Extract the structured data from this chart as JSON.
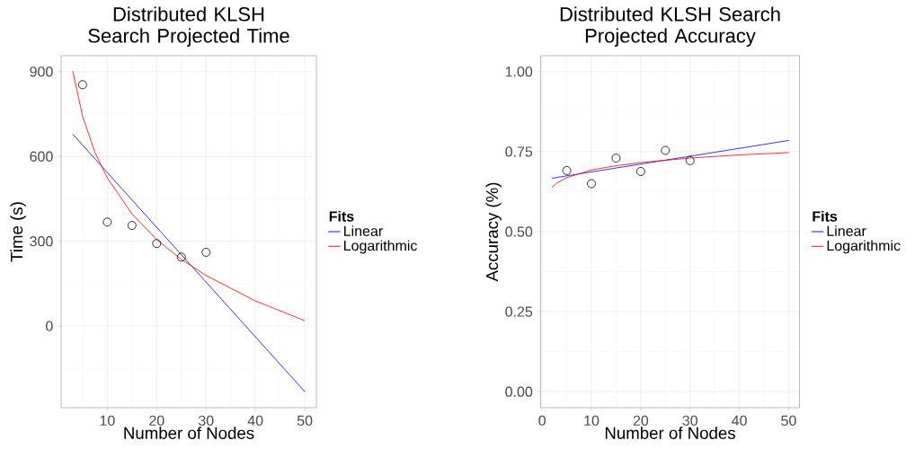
{
  "chart_data": [
    {
      "type": "scatter",
      "title": "Distributed KLSH Search Projected Time",
      "xlabel": "Number of Nodes",
      "ylabel": "Time (s)",
      "legend_title": "Fits",
      "legend": "right",
      "grid": true,
      "xlim": [
        0.65,
        52.35
      ],
      "ylim": [
        -288.6,
        956.6
      ],
      "xticks": [
        10,
        20,
        30,
        40,
        50
      ],
      "yticks": [
        0,
        300,
        600,
        900
      ],
      "series": [
        {
          "marker": "circle",
          "color": "#000000",
          "x": [
            5,
            10,
            15,
            20,
            25,
            30
          ],
          "values": [
            854,
            368,
            356,
            292,
            244,
            261
          ]
        },
        {
          "type": "line",
          "name": "Linear",
          "color": "#0000ff",
          "x": [
            3,
            50
          ],
          "values": [
            679,
            -232
          ]
        },
        {
          "type": "line",
          "name": "Logarithmic",
          "color": "#ff0000",
          "x": [
            3,
            5,
            7.5,
            10,
            15,
            20,
            25,
            30,
            40,
            50
          ],
          "values": [
            902,
            742,
            614,
            524,
            397,
            306,
            236,
            179,
            89,
            19
          ]
        }
      ]
    },
    {
      "type": "scatter",
      "title": "Distributed KLSH Search Projected Accuracy",
      "xlabel": "Number of Nodes",
      "ylabel": "Accuracy (%)",
      "legend_title": "Fits",
      "legend": "right",
      "grid": true,
      "xlim": [
        -0.3,
        52.2
      ],
      "ylim": [
        -0.05,
        1.05
      ],
      "xticks": [
        0,
        10,
        20,
        30,
        40,
        50
      ],
      "yticks": [
        {
          "value": 0,
          "label": "0.00"
        },
        {
          "value": 0.25,
          "label": "0.25"
        },
        {
          "value": 0.5,
          "label": "0.50"
        },
        {
          "value": 0.75,
          "label": "0.75"
        },
        {
          "value": 1,
          "label": "1.00"
        }
      ],
      "series": [
        {
          "marker": "circle",
          "color": "#000000",
          "x": [
            5,
            10,
            15,
            20,
            25,
            30
          ],
          "values": [
            0.691,
            0.65,
            0.73,
            0.688,
            0.754,
            0.722
          ]
        },
        {
          "type": "line",
          "name": "Linear",
          "color": "#0000ff",
          "x": [
            2,
            50
          ],
          "values": [
            0.667,
            0.785
          ]
        },
        {
          "type": "line",
          "name": "Logarithmic",
          "color": "#ff0000",
          "x": [
            2,
            3,
            5,
            10,
            15,
            20,
            30,
            40,
            50
          ],
          "values": [
            0.638,
            0.652,
            0.669,
            0.693,
            0.706,
            0.716,
            0.73,
            0.74,
            0.747
          ]
        }
      ]
    }
  ]
}
